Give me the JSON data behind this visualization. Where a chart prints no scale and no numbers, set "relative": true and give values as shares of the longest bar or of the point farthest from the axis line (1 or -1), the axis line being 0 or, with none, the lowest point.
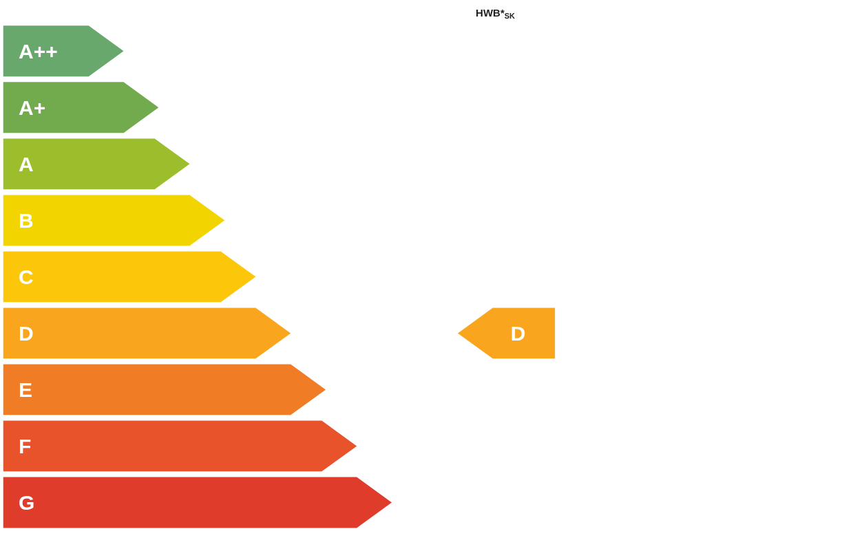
{
  "chart_data": {
    "type": "bar",
    "orientation": "horizontal",
    "relative": true,
    "title": "HWB*$_{SK}$",
    "categories": [
      "A++",
      "A+",
      "A",
      "B",
      "C",
      "D",
      "E",
      "F",
      "G"
    ],
    "values": [
      0.31,
      0.4,
      0.48,
      0.57,
      0.65,
      0.74,
      0.83,
      0.91,
      1
    ],
    "colors": [
      "#68a86c",
      "#72ab4e",
      "#9dbe2c",
      "#f2d500",
      "#fcc60a",
      "#f9a61e",
      "#f07d26",
      "#e8532b",
      "#e03c2b"
    ],
    "annotations": [
      "D"
    ]
  }
}
